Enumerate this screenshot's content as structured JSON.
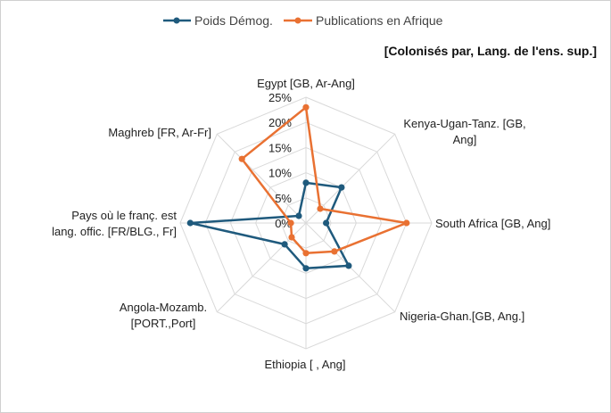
{
  "chart_data": {
    "type": "radar",
    "subtitle": "[Colonisés par, Lang. de l'ens. sup.]",
    "categories": [
      "Egypt [GB, Ar-Ang]",
      "Kenya-Ugan-Tanz. [GB, Ang]",
      "South Africa [GB, Ang]",
      "Nigeria-Ghan.[GB, Ang.]",
      "Ethiopia [     , Ang]",
      "Angola-Mozamb. [PORT.,Port]",
      "Pays où le franç. est lang. offic. [FR/BLG., Fr]",
      "Maghreb [FR, Ar-Fr]"
    ],
    "category_lines": [
      [
        "Egypt [GB, Ar-Ang]"
      ],
      [
        "Kenya-Ugan-Tanz. [GB,",
        "Ang]"
      ],
      [
        "South Africa [GB, Ang]"
      ],
      [
        "Nigeria-Ghan.[GB, Ang.]"
      ],
      [
        "Ethiopia [     , Ang]"
      ],
      [
        "Angola-Mozamb.",
        "[PORT.,Port]"
      ],
      [
        "Pays où le franç. est",
        "lang. offic. [FR/BLG., Fr]"
      ],
      [
        "Maghreb [FR, Ar-Fr]"
      ]
    ],
    "tick_values": [
      0,
      5,
      10,
      15,
      20,
      25
    ],
    "tick_labels": [
      "0%",
      "5%",
      "10%",
      "15%",
      "20%",
      "25%"
    ],
    "range": [
      0,
      25
    ],
    "series": [
      {
        "name": "Poids Démog.",
        "color": "#1f5a7d",
        "values": [
          8,
          10,
          4,
          12,
          9,
          6,
          23,
          2
        ]
      },
      {
        "name": "Publications en Afrique",
        "color": "#e97132",
        "values": [
          23,
          4,
          20,
          8,
          6,
          4,
          3,
          18
        ]
      }
    ],
    "grid_color": "#d9d9d9"
  }
}
